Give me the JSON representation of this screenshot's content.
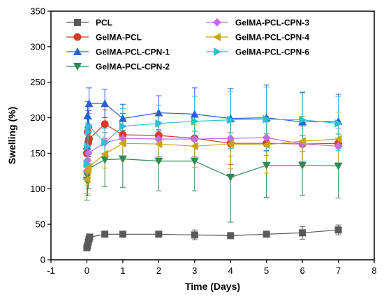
{
  "chart_data": {
    "type": "line",
    "xlabel": "Time (Days)",
    "ylabel": "Swelling (%)",
    "xlim": [
      -1,
      8
    ],
    "ylim": [
      0,
      350
    ],
    "x_ticks": [
      -1,
      0,
      1,
      2,
      3,
      4,
      5,
      6,
      7,
      8
    ],
    "y_ticks": [
      0,
      50,
      100,
      150,
      200,
      250,
      300,
      350
    ],
    "legend_placement": "top",
    "series": [
      {
        "name": "PCL",
        "color": "#595959",
        "marker": "square",
        "points": [
          {
            "x": 0.0,
            "y": 17,
            "err": 3
          },
          {
            "x": 0.02,
            "y": 20,
            "err": 3
          },
          {
            "x": 0.04,
            "y": 25,
            "err": 4
          },
          {
            "x": 0.06,
            "y": 29,
            "err": 4
          },
          {
            "x": 0.08,
            "y": 32,
            "err": 4
          },
          {
            "x": 0.5,
            "y": 36,
            "err": 3
          },
          {
            "x": 1,
            "y": 36,
            "err": 3
          },
          {
            "x": 2,
            "y": 36,
            "err": 3
          },
          {
            "x": 3,
            "y": 35,
            "err": 7
          },
          {
            "x": 4,
            "y": 34,
            "err": 3
          },
          {
            "x": 5,
            "y": 36,
            "err": 3
          },
          {
            "x": 6,
            "y": 38,
            "err": 9
          },
          {
            "x": 7,
            "y": 42,
            "err": 7
          }
        ]
      },
      {
        "name": "GelMA-PCL",
        "color": "#d9392b",
        "marker": "circle",
        "points": [
          {
            "x": 0.0,
            "y": 150,
            "err": 18
          },
          {
            "x": 0.02,
            "y": 180,
            "err": 20
          },
          {
            "x": 0.04,
            "y": 165,
            "err": 20
          },
          {
            "x": 0.06,
            "y": 170,
            "err": 20
          },
          {
            "x": 0.5,
            "y": 191,
            "err": 20
          },
          {
            "x": 1,
            "y": 176,
            "err": 30
          },
          {
            "x": 2,
            "y": 175,
            "err": 30
          },
          {
            "x": 3,
            "y": 171,
            "err": 30
          },
          {
            "x": 4,
            "y": 164,
            "err": 30
          },
          {
            "x": 5,
            "y": 164,
            "err": 30
          },
          {
            "x": 6,
            "y": 163,
            "err": 30
          },
          {
            "x": 7,
            "y": 164,
            "err": 30
          }
        ]
      },
      {
        "name": "GelMA-PCL-CPN-1",
        "color": "#2a5fd6",
        "marker": "triangle-up",
        "points": [
          {
            "x": 0.0,
            "y": 160,
            "err": 20
          },
          {
            "x": 0.02,
            "y": 203,
            "err": 20
          },
          {
            "x": 0.04,
            "y": 190,
            "err": 20
          },
          {
            "x": 0.06,
            "y": 220,
            "err": 22
          },
          {
            "x": 0.5,
            "y": 220,
            "err": 20
          },
          {
            "x": 1,
            "y": 199,
            "err": 20
          },
          {
            "x": 2,
            "y": 207,
            "err": 24
          },
          {
            "x": 3,
            "y": 205,
            "err": 37
          },
          {
            "x": 4,
            "y": 199,
            "err": 42
          },
          {
            "x": 5,
            "y": 200,
            "err": 46
          },
          {
            "x": 6,
            "y": 194,
            "err": 42
          },
          {
            "x": 7,
            "y": 195,
            "err": 38
          }
        ]
      },
      {
        "name": "GelMA-PCL-CPN-2",
        "color": "#2e8b57",
        "marker": "triangle-down",
        "points": [
          {
            "x": 0.0,
            "y": 112,
            "err": 28
          },
          {
            "x": 0.02,
            "y": 118,
            "err": 28
          },
          {
            "x": 0.04,
            "y": 128,
            "err": 28
          },
          {
            "x": 0.5,
            "y": 141,
            "err": 38
          },
          {
            "x": 1,
            "y": 142,
            "err": 40
          },
          {
            "x": 2,
            "y": 139,
            "err": 42
          },
          {
            "x": 3,
            "y": 139,
            "err": 42
          },
          {
            "x": 4,
            "y": 116,
            "err": 63
          },
          {
            "x": 5,
            "y": 133,
            "err": 45
          },
          {
            "x": 6,
            "y": 133,
            "err": 42
          },
          {
            "x": 7,
            "y": 132,
            "err": 45
          }
        ]
      },
      {
        "name": "GelMA-PCL-CPN-3",
        "color": "#c46ee6",
        "marker": "diamond",
        "points": [
          {
            "x": 0.0,
            "y": 125,
            "err": 15
          },
          {
            "x": 0.02,
            "y": 140,
            "err": 15
          },
          {
            "x": 0.04,
            "y": 150,
            "err": 15
          },
          {
            "x": 0.5,
            "y": 165,
            "err": 20
          },
          {
            "x": 1,
            "y": 171,
            "err": 25
          },
          {
            "x": 2,
            "y": 170,
            "err": 25
          },
          {
            "x": 3,
            "y": 170,
            "err": 25
          },
          {
            "x": 4,
            "y": 171,
            "err": 25
          },
          {
            "x": 5,
            "y": 172,
            "err": 25
          },
          {
            "x": 6,
            "y": 163,
            "err": 25
          },
          {
            "x": 7,
            "y": 160,
            "err": 25
          }
        ]
      },
      {
        "name": "GelMA-PCL-CPN-4",
        "color": "#c9a516",
        "marker": "triangle-left",
        "points": [
          {
            "x": 0.0,
            "y": 113,
            "err": 20
          },
          {
            "x": 0.02,
            "y": 125,
            "err": 20
          },
          {
            "x": 0.04,
            "y": 130,
            "err": 20
          },
          {
            "x": 0.5,
            "y": 149,
            "err": 20
          },
          {
            "x": 1,
            "y": 164,
            "err": 25
          },
          {
            "x": 2,
            "y": 163,
            "err": 25
          },
          {
            "x": 3,
            "y": 160,
            "err": 30
          },
          {
            "x": 4,
            "y": 163,
            "err": 35
          },
          {
            "x": 5,
            "y": 162,
            "err": 40
          },
          {
            "x": 6,
            "y": 167,
            "err": 35
          },
          {
            "x": 7,
            "y": 170,
            "err": 38
          }
        ]
      },
      {
        "name": "GelMA-PCL-CPN-6",
        "color": "#2fbfcf",
        "marker": "triangle-right",
        "points": [
          {
            "x": 0.0,
            "y": 135,
            "err": 15
          },
          {
            "x": 0.02,
            "y": 160,
            "err": 18
          },
          {
            "x": 0.04,
            "y": 180,
            "err": 18
          },
          {
            "x": 0.06,
            "y": 188,
            "err": 18
          },
          {
            "x": 0.5,
            "y": 165,
            "err": 20
          },
          {
            "x": 1,
            "y": 188,
            "err": 25
          },
          {
            "x": 2,
            "y": 192,
            "err": 25
          },
          {
            "x": 3,
            "y": 195,
            "err": 35
          },
          {
            "x": 4,
            "y": 197,
            "err": 40
          },
          {
            "x": 5,
            "y": 198,
            "err": 45
          },
          {
            "x": 6,
            "y": 197,
            "err": 38
          },
          {
            "x": 7,
            "y": 192,
            "err": 38
          }
        ]
      }
    ]
  }
}
